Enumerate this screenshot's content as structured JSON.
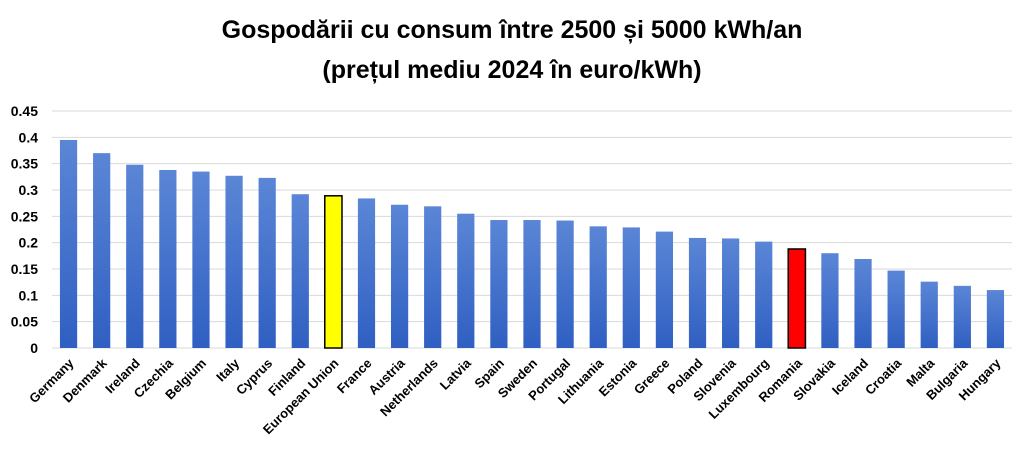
{
  "chart_data": {
    "type": "bar",
    "title_line1": "Gospodării cu consum între 2500 și 5000 kWh/an",
    "title_line2": "(prețul mediu 2024 în euro/kWh)",
    "xlabel": "",
    "ylabel": "",
    "ylim": [
      0,
      0.45
    ],
    "yticks": [
      "0",
      "0.05",
      "0.1",
      "0.15",
      "0.2",
      "0.25",
      "0.3",
      "0.35",
      "0.4",
      "0.45"
    ],
    "grid": true,
    "categories": [
      "Germany",
      "Denmark",
      "Ireland",
      "Czechia",
      "Belgium",
      "Italy",
      "Cyprus",
      "Finland",
      "European Union",
      "France",
      "Austria",
      "Netherlands",
      "Latvia",
      "Spain",
      "Sweden",
      "Portugal",
      "Lithuania",
      "Estonia",
      "Greece",
      "Poland",
      "Slovenia",
      "Luxembourg",
      "Romania",
      "Slovakia",
      "Iceland",
      "Croatia",
      "Malta",
      "Bulgaria",
      "Hungary"
    ],
    "values": [
      0.395,
      0.37,
      0.348,
      0.338,
      0.335,
      0.327,
      0.323,
      0.292,
      0.289,
      0.284,
      0.272,
      0.269,
      0.255,
      0.243,
      0.243,
      0.242,
      0.231,
      0.229,
      0.221,
      0.209,
      0.208,
      0.202,
      0.188,
      0.18,
      0.169,
      0.147,
      0.126,
      0.118,
      0.11
    ],
    "highlights": {
      "European Union": "#ffff00",
      "Romania": "#ff0000"
    },
    "colors": {
      "bar_top": "#5b86d6",
      "bar_bottom": "#2f5fc2",
      "highlight_border": "#000000"
    }
  }
}
